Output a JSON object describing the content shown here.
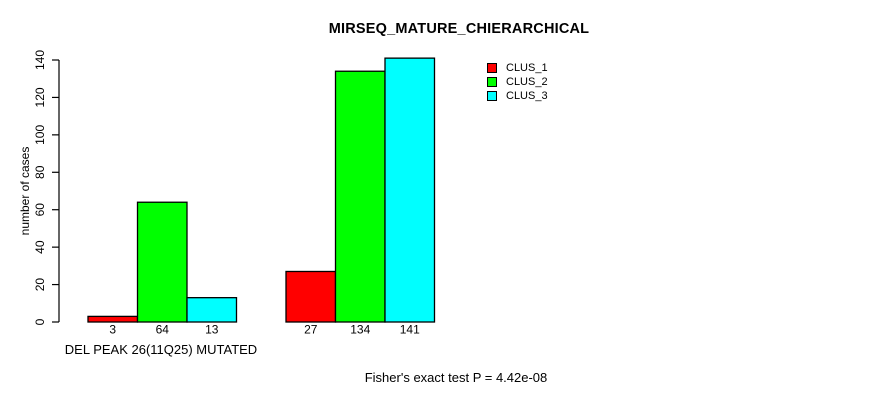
{
  "chart_data": {
    "type": "bar",
    "title": "MIRSEQ_MATURE_CHIERARCHICAL",
    "ylabel": "number of cases",
    "xlabel": "DEL PEAK 26(11Q25) MUTATED",
    "annotation": "Fisher's exact test P = 4.42e-08",
    "ylim": [
      0,
      140
    ],
    "yticks": [
      0,
      20,
      40,
      60,
      80,
      100,
      120,
      140
    ],
    "grid": false,
    "legend_position": "top-right",
    "groups": 2,
    "series": [
      {
        "name": "CLUS_1",
        "color": "#ff0000",
        "values": [
          3,
          27
        ]
      },
      {
        "name": "CLUS_2",
        "color": "#00ff00",
        "values": [
          64,
          134
        ]
      },
      {
        "name": "CLUS_3",
        "color": "#00ffff",
        "values": [
          13,
          141
        ]
      }
    ],
    "bar_value_labels": [
      [
        3,
        64,
        13
      ],
      [
        27,
        134,
        141
      ]
    ]
  }
}
